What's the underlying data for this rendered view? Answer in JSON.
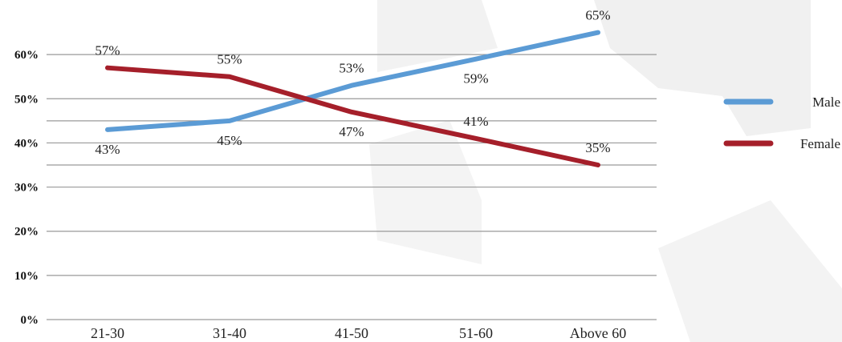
{
  "chart_data": {
    "type": "line",
    "categories": [
      "21-30",
      "31-40",
      "41-50",
      "51-60",
      "Above 60"
    ],
    "y_ticks": [
      "0%",
      "10%",
      "20%",
      "30%",
      "40%",
      "50%",
      "60%"
    ],
    "ylim": [
      0,
      70
    ],
    "grid": true,
    "legend_position": "right",
    "series": [
      {
        "name": "Male",
        "color": "#5b9bd5",
        "values": [
          43,
          45,
          53,
          59,
          65
        ],
        "labels": [
          "43%",
          "45%",
          "53%",
          "59%",
          "65%"
        ]
      },
      {
        "name": "Female",
        "color": "#a51f2a",
        "values": [
          57,
          55,
          47,
          41,
          35
        ],
        "labels": [
          "57%",
          "55%",
          "47%",
          "41%",
          "35%"
        ]
      }
    ]
  }
}
